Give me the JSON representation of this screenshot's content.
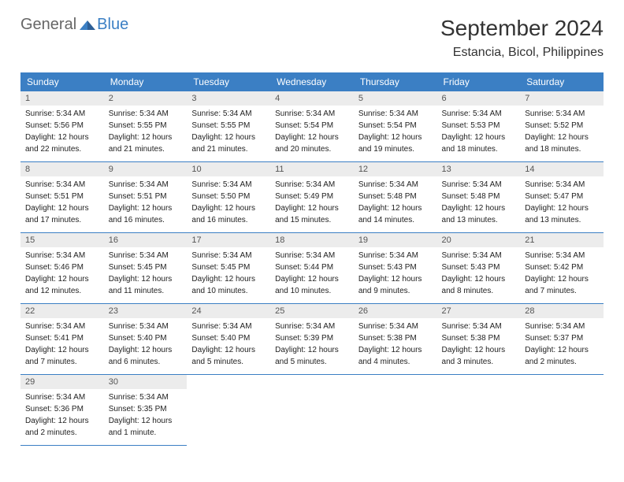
{
  "logo": {
    "text1": "General",
    "text2": "Blue"
  },
  "title": "September 2024",
  "location": "Estancia, Bicol, Philippines",
  "colors": {
    "header_bg": "#3b7fc4",
    "header_text": "#ffffff",
    "daynum_bg": "#ececec",
    "daynum_text": "#555555",
    "body_text": "#222222",
    "border": "#3b7fc4",
    "logo_gray": "#666666",
    "logo_blue": "#3b7fc4"
  },
  "day_headers": [
    "Sunday",
    "Monday",
    "Tuesday",
    "Wednesday",
    "Thursday",
    "Friday",
    "Saturday"
  ],
  "days": [
    {
      "num": "1",
      "sunrise": "5:34 AM",
      "sunset": "5:56 PM",
      "daylight": "12 hours and 22 minutes."
    },
    {
      "num": "2",
      "sunrise": "5:34 AM",
      "sunset": "5:55 PM",
      "daylight": "12 hours and 21 minutes."
    },
    {
      "num": "3",
      "sunrise": "5:34 AM",
      "sunset": "5:55 PM",
      "daylight": "12 hours and 21 minutes."
    },
    {
      "num": "4",
      "sunrise": "5:34 AM",
      "sunset": "5:54 PM",
      "daylight": "12 hours and 20 minutes."
    },
    {
      "num": "5",
      "sunrise": "5:34 AM",
      "sunset": "5:54 PM",
      "daylight": "12 hours and 19 minutes."
    },
    {
      "num": "6",
      "sunrise": "5:34 AM",
      "sunset": "5:53 PM",
      "daylight": "12 hours and 18 minutes."
    },
    {
      "num": "7",
      "sunrise": "5:34 AM",
      "sunset": "5:52 PM",
      "daylight": "12 hours and 18 minutes."
    },
    {
      "num": "8",
      "sunrise": "5:34 AM",
      "sunset": "5:51 PM",
      "daylight": "12 hours and 17 minutes."
    },
    {
      "num": "9",
      "sunrise": "5:34 AM",
      "sunset": "5:51 PM",
      "daylight": "12 hours and 16 minutes."
    },
    {
      "num": "10",
      "sunrise": "5:34 AM",
      "sunset": "5:50 PM",
      "daylight": "12 hours and 16 minutes."
    },
    {
      "num": "11",
      "sunrise": "5:34 AM",
      "sunset": "5:49 PM",
      "daylight": "12 hours and 15 minutes."
    },
    {
      "num": "12",
      "sunrise": "5:34 AM",
      "sunset": "5:48 PM",
      "daylight": "12 hours and 14 minutes."
    },
    {
      "num": "13",
      "sunrise": "5:34 AM",
      "sunset": "5:48 PM",
      "daylight": "12 hours and 13 minutes."
    },
    {
      "num": "14",
      "sunrise": "5:34 AM",
      "sunset": "5:47 PM",
      "daylight": "12 hours and 13 minutes."
    },
    {
      "num": "15",
      "sunrise": "5:34 AM",
      "sunset": "5:46 PM",
      "daylight": "12 hours and 12 minutes."
    },
    {
      "num": "16",
      "sunrise": "5:34 AM",
      "sunset": "5:45 PM",
      "daylight": "12 hours and 11 minutes."
    },
    {
      "num": "17",
      "sunrise": "5:34 AM",
      "sunset": "5:45 PM",
      "daylight": "12 hours and 10 minutes."
    },
    {
      "num": "18",
      "sunrise": "5:34 AM",
      "sunset": "5:44 PM",
      "daylight": "12 hours and 10 minutes."
    },
    {
      "num": "19",
      "sunrise": "5:34 AM",
      "sunset": "5:43 PM",
      "daylight": "12 hours and 9 minutes."
    },
    {
      "num": "20",
      "sunrise": "5:34 AM",
      "sunset": "5:43 PM",
      "daylight": "12 hours and 8 minutes."
    },
    {
      "num": "21",
      "sunrise": "5:34 AM",
      "sunset": "5:42 PM",
      "daylight": "12 hours and 7 minutes."
    },
    {
      "num": "22",
      "sunrise": "5:34 AM",
      "sunset": "5:41 PM",
      "daylight": "12 hours and 7 minutes."
    },
    {
      "num": "23",
      "sunrise": "5:34 AM",
      "sunset": "5:40 PM",
      "daylight": "12 hours and 6 minutes."
    },
    {
      "num": "24",
      "sunrise": "5:34 AM",
      "sunset": "5:40 PM",
      "daylight": "12 hours and 5 minutes."
    },
    {
      "num": "25",
      "sunrise": "5:34 AM",
      "sunset": "5:39 PM",
      "daylight": "12 hours and 5 minutes."
    },
    {
      "num": "26",
      "sunrise": "5:34 AM",
      "sunset": "5:38 PM",
      "daylight": "12 hours and 4 minutes."
    },
    {
      "num": "27",
      "sunrise": "5:34 AM",
      "sunset": "5:38 PM",
      "daylight": "12 hours and 3 minutes."
    },
    {
      "num": "28",
      "sunrise": "5:34 AM",
      "sunset": "5:37 PM",
      "daylight": "12 hours and 2 minutes."
    },
    {
      "num": "29",
      "sunrise": "5:34 AM",
      "sunset": "5:36 PM",
      "daylight": "12 hours and 2 minutes."
    },
    {
      "num": "30",
      "sunrise": "5:34 AM",
      "sunset": "5:35 PM",
      "daylight": "12 hours and 1 minute."
    }
  ],
  "labels": {
    "sunrise": "Sunrise:",
    "sunset": "Sunset:",
    "daylight": "Daylight:"
  }
}
